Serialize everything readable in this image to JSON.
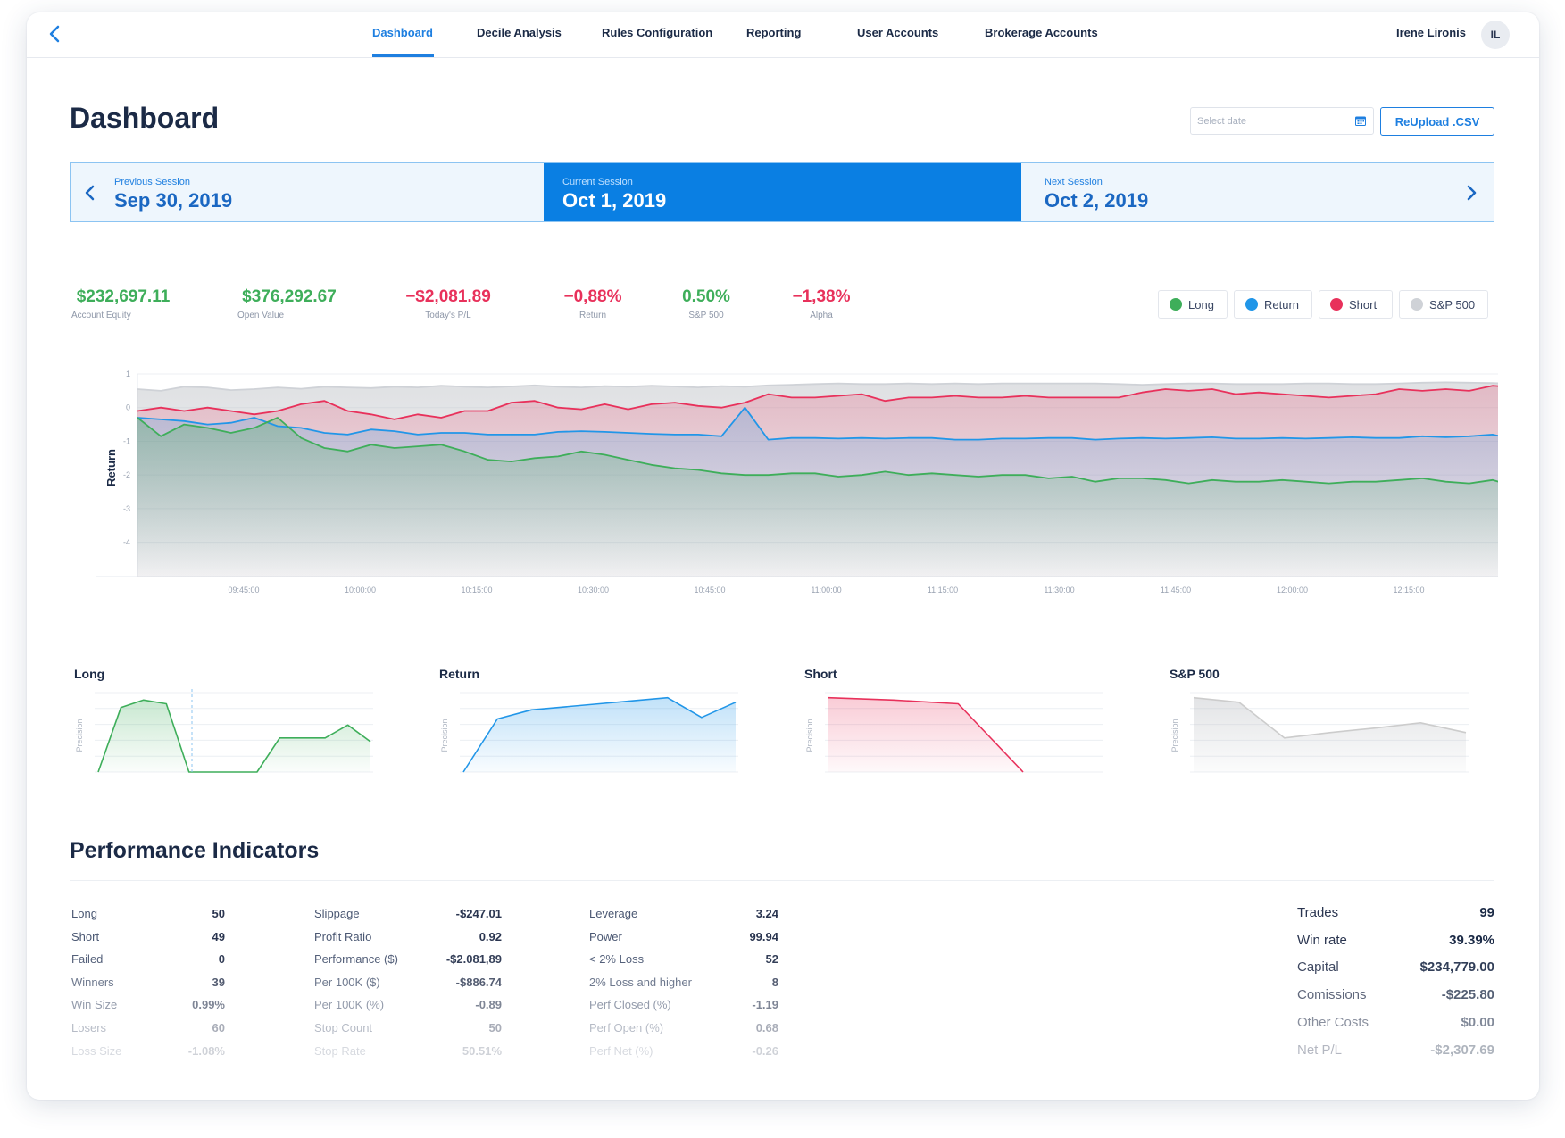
{
  "nav": {
    "items": [
      "Dashboard",
      "Decile Analysis",
      "Rules Configuration",
      "Reporting",
      "User Accounts",
      "Brokerage Accounts"
    ],
    "active": "Dashboard",
    "user_name": "Irene Lironis",
    "user_initials": "IL"
  },
  "header": {
    "title": "Dashboard",
    "date_placeholder": "Select date",
    "reupload_label": "ReUpload .CSV"
  },
  "sessions": {
    "previous": {
      "label": "Previous Session",
      "value": "Sep 30, 2019"
    },
    "current": {
      "label": "Current Session",
      "value": "Oct 1, 2019"
    },
    "next": {
      "label": "Next Session",
      "value": "Oct 2, 2019"
    }
  },
  "stats": [
    {
      "value": "$232,697.11",
      "label": "Account Equity",
      "tone": "green"
    },
    {
      "value": "$376,292.67",
      "label": "Open Value",
      "tone": "green"
    },
    {
      "value": "−$2,081.89",
      "label": "Today's P/L",
      "tone": "red"
    },
    {
      "value": "−0,88%",
      "label": "Return",
      "tone": "red"
    },
    {
      "value": "0.50%",
      "label": "S&P 500",
      "tone": "green"
    },
    {
      "value": "−1,38%",
      "label": "Alpha",
      "tone": "red"
    }
  ],
  "legend": [
    {
      "name": "Long",
      "color": "#3eae5a"
    },
    {
      "name": "Return",
      "color": "#2196e8"
    },
    {
      "name": "Short",
      "color": "#e8315b"
    },
    {
      "name": "S&P 500",
      "color": "#cfd2d7"
    }
  ],
  "chart_data": [
    {
      "type": "area",
      "title": "",
      "ylabel": "Return",
      "xlabel": "",
      "ylim": [
        -4.7,
        1
      ],
      "yticks": [
        1,
        0,
        -1,
        -2,
        -3,
        -4
      ],
      "x_tick_labels": [
        "09:45:00",
        "10:00:00",
        "10:15:00",
        "10:30:00",
        "10:45:00",
        "11:00:00",
        "11:15:00",
        "11:30:00",
        "11:45:00",
        "12:00:00",
        "12:15:00"
      ],
      "grid": true,
      "series": [
        {
          "name": "S&P 500",
          "color": "#cfd2d7",
          "values": [
            0.55,
            0.5,
            0.62,
            0.6,
            0.52,
            0.55,
            0.6,
            0.56,
            0.62,
            0.6,
            0.58,
            0.62,
            0.6,
            0.65,
            0.62,
            0.6,
            0.63,
            0.66,
            0.62,
            0.6,
            0.64,
            0.62,
            0.65,
            0.63,
            0.6,
            0.64,
            0.62,
            0.66,
            0.68,
            0.7,
            0.72,
            0.7,
            0.7,
            0.72,
            0.7,
            0.72,
            0.7,
            0.72,
            0.72,
            0.72,
            0.72,
            0.72,
            0.7,
            0.68,
            0.7,
            0.72,
            0.72,
            0.7,
            0.7,
            0.7,
            0.72,
            0.72,
            0.7,
            0.7,
            0.72,
            0.74,
            0.75,
            0.74,
            0.73,
            0.7
          ]
        },
        {
          "name": "Short",
          "color": "#e8315b",
          "values": [
            -0.1,
            0.0,
            -0.1,
            0.0,
            -0.1,
            -0.2,
            -0.1,
            0.1,
            0.2,
            -0.1,
            -0.2,
            -0.35,
            -0.2,
            -0.3,
            -0.1,
            -0.1,
            0.15,
            0.2,
            0.0,
            -0.05,
            0.1,
            -0.05,
            0.1,
            0.15,
            0.05,
            0.0,
            0.15,
            0.4,
            0.3,
            0.3,
            0.35,
            0.4,
            0.2,
            0.3,
            0.3,
            0.35,
            0.3,
            0.3,
            0.35,
            0.3,
            0.3,
            0.3,
            0.3,
            0.45,
            0.55,
            0.5,
            0.55,
            0.4,
            0.45,
            0.4,
            0.35,
            0.3,
            0.35,
            0.4,
            0.55,
            0.5,
            0.55,
            0.5,
            0.65,
            0.6
          ]
        },
        {
          "name": "Return",
          "color": "#2196e8",
          "values": [
            -0.3,
            -0.35,
            -0.4,
            -0.5,
            -0.45,
            -0.3,
            -0.55,
            -0.6,
            -0.75,
            -0.8,
            -0.65,
            -0.7,
            -0.8,
            -0.75,
            -0.75,
            -0.8,
            -0.8,
            -0.8,
            -0.72,
            -0.7,
            -0.72,
            -0.75,
            -0.78,
            -0.8,
            -0.8,
            -0.85,
            0.0,
            -0.95,
            -0.9,
            -0.9,
            -0.92,
            -0.9,
            -0.92,
            -0.9,
            -0.9,
            -0.95,
            -0.95,
            -0.92,
            -0.92,
            -0.9,
            -0.9,
            -0.95,
            -0.92,
            -0.9,
            -0.92,
            -0.9,
            -0.88,
            -0.92,
            -0.92,
            -0.9,
            -0.92,
            -0.9,
            -0.88,
            -0.9,
            -0.9,
            -0.85,
            -0.88,
            -0.85,
            -0.8,
            -0.95
          ]
        },
        {
          "name": "Long",
          "color": "#3eae5a",
          "values": [
            -0.3,
            -0.85,
            -0.5,
            -0.6,
            -0.75,
            -0.6,
            -0.3,
            -0.9,
            -1.2,
            -1.3,
            -1.1,
            -1.2,
            -1.15,
            -1.1,
            -1.3,
            -1.55,
            -1.6,
            -1.5,
            -1.45,
            -1.3,
            -1.4,
            -1.55,
            -1.7,
            -1.8,
            -1.85,
            -1.95,
            -2.0,
            -2.0,
            -1.95,
            -1.95,
            -2.05,
            -2.0,
            -1.9,
            -2.0,
            -1.95,
            -2.0,
            -2.05,
            -2.0,
            -2.0,
            -2.1,
            -2.05,
            -2.2,
            -2.1,
            -2.1,
            -2.15,
            -2.25,
            -2.15,
            -2.2,
            -2.2,
            -2.15,
            -2.2,
            -2.25,
            -2.2,
            -2.2,
            -2.15,
            -2.1,
            -2.2,
            -2.25,
            -2.15,
            -2.35
          ]
        }
      ]
    },
    {
      "type": "area",
      "title": "Long",
      "ylabel": "Precision",
      "series": [
        {
          "name": "Long",
          "color": "#3eae5a",
          "values": [
            0.0,
            0.85,
            0.95,
            0.9,
            0.0,
            0.0,
            0.0,
            0.0,
            0.45,
            0.45,
            0.45,
            0.62,
            0.4
          ]
        }
      ]
    },
    {
      "type": "area",
      "title": "Return",
      "ylabel": "Precision",
      "series": [
        {
          "name": "Return",
          "color": "#2196e8",
          "values": [
            0.0,
            0.7,
            0.82,
            0.86,
            0.9,
            0.94,
            0.98,
            0.72,
            0.92
          ]
        }
      ]
    },
    {
      "type": "area",
      "title": "Short",
      "ylabel": "Precision",
      "series": [
        {
          "name": "Short",
          "color": "#e8315b",
          "values": [
            0.98,
            0.95,
            0.9,
            0.0
          ]
        }
      ]
    },
    {
      "type": "area",
      "title": "S&P 500",
      "ylabel": "Precision",
      "series": [
        {
          "name": "S&P 500",
          "color": "#cccccc",
          "values": [
            0.98,
            0.92,
            0.45,
            0.52,
            0.58,
            0.65,
            0.52
          ]
        }
      ]
    }
  ],
  "performance": {
    "title": "Performance Indicators",
    "col1": [
      {
        "k": "Long",
        "v": "50"
      },
      {
        "k": "Short",
        "v": "49"
      },
      {
        "k": "Failed",
        "v": "0"
      },
      {
        "k": "Winners",
        "v": "39"
      },
      {
        "k": "Win Size",
        "v": "0.99%"
      },
      {
        "k": "Losers",
        "v": "60"
      },
      {
        "k": "Loss Size",
        "v": "-1.08%"
      }
    ],
    "col2": [
      {
        "k": "Slippage",
        "v": "-$247.01"
      },
      {
        "k": "Profit Ratio",
        "v": "0.92"
      },
      {
        "k": "Performance ($)",
        "v": "-$2.081,89"
      },
      {
        "k": "Per 100K ($)",
        "v": "-$886.74"
      },
      {
        "k": "Per 100K (%)",
        "v": "-0.89"
      },
      {
        "k": "Stop Count",
        "v": "50"
      },
      {
        "k": "Stop Rate",
        "v": "50.51%"
      }
    ],
    "col3": [
      {
        "k": "Leverage",
        "v": "3.24"
      },
      {
        "k": "Power",
        "v": "99.94"
      },
      {
        "k": "< 2% Loss",
        "v": "52"
      },
      {
        "k": "2% Loss and higher",
        "v": "8"
      },
      {
        "k": "Perf Closed (%)",
        "v": "-1.19"
      },
      {
        "k": "Perf Open (%)",
        "v": "0.68"
      },
      {
        "k": "Perf Net (%)",
        "v": "-0.26"
      }
    ],
    "summary": [
      {
        "k": "Trades",
        "v": "99"
      },
      {
        "k": "Win rate",
        "v": "39.39%"
      },
      {
        "k": "Capital",
        "v": "$234,779.00"
      },
      {
        "k": "Comissions",
        "v": "-$225.80"
      },
      {
        "k": "Other Costs",
        "v": "$0.00"
      },
      {
        "k": "Net P/L",
        "v": "-$2,307.69"
      }
    ]
  }
}
